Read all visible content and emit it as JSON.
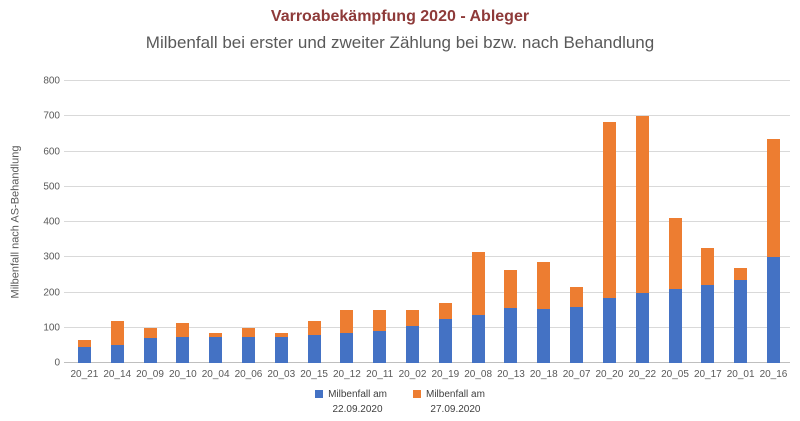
{
  "header": {
    "title": "Varroabekämpfung 2020 - Ableger",
    "subtitle": "Milbenfall bei erster und zweiter Zählung bei bzw. nach Behandlung"
  },
  "colors": {
    "title_text": "#8e3a39",
    "subtitle_text": "#595959",
    "axis_text": "#595959",
    "gridline": "#d9d9d9",
    "axis_line": "#bfbfbf",
    "series_blue": "#4472c4",
    "series_orange": "#ed7d31"
  },
  "chart_data": {
    "type": "bar",
    "stacked": true,
    "title": "Varroabekämpfung 2020 - Ableger",
    "subtitle": "Milbenfall bei erster und zweiter Zählung bei bzw. nach Behandlung",
    "xlabel": "",
    "ylabel": "Milbenfall nach AS-Behandlung",
    "ylim": [
      0,
      800
    ],
    "ytick_step": 100,
    "grid": true,
    "legend_position": "bottom",
    "categories": [
      "20_21",
      "20_14",
      "20_09",
      "20_10",
      "20_04",
      "20_06",
      "20_03",
      "20_15",
      "20_12",
      "20_11",
      "20_02",
      "20_19",
      "20_08",
      "20_13",
      "20_18",
      "20_07",
      "20_20",
      "20_22",
      "20_05",
      "20_17",
      "20_01",
      "20_16"
    ],
    "series": [
      {
        "name": "Milbenfall am 22.09.2020",
        "label_lines": [
          "Milbenfall am",
          "22.09.2020"
        ],
        "color": "#4472c4",
        "values": [
          45,
          52,
          70,
          73,
          75,
          75,
          75,
          80,
          85,
          90,
          105,
          125,
          137,
          155,
          153,
          160,
          185,
          198,
          210,
          220,
          235,
          300
        ]
      },
      {
        "name": "Milbenfall am 27.09.2020",
        "label_lines": [
          "Milbenfall am",
          "27.09.2020"
        ],
        "color": "#ed7d31",
        "values": [
          20,
          68,
          30,
          40,
          10,
          25,
          10,
          38,
          65,
          60,
          45,
          45,
          178,
          110,
          133,
          57,
          500,
          502,
          200,
          105,
          35,
          335
        ]
      }
    ],
    "stacked_totals": [
      65,
      120,
      100,
      113,
      85,
      100,
      85,
      118,
      150,
      150,
      150,
      170,
      315,
      265,
      286,
      217,
      685,
      700,
      410,
      325,
      270,
      635
    ]
  }
}
